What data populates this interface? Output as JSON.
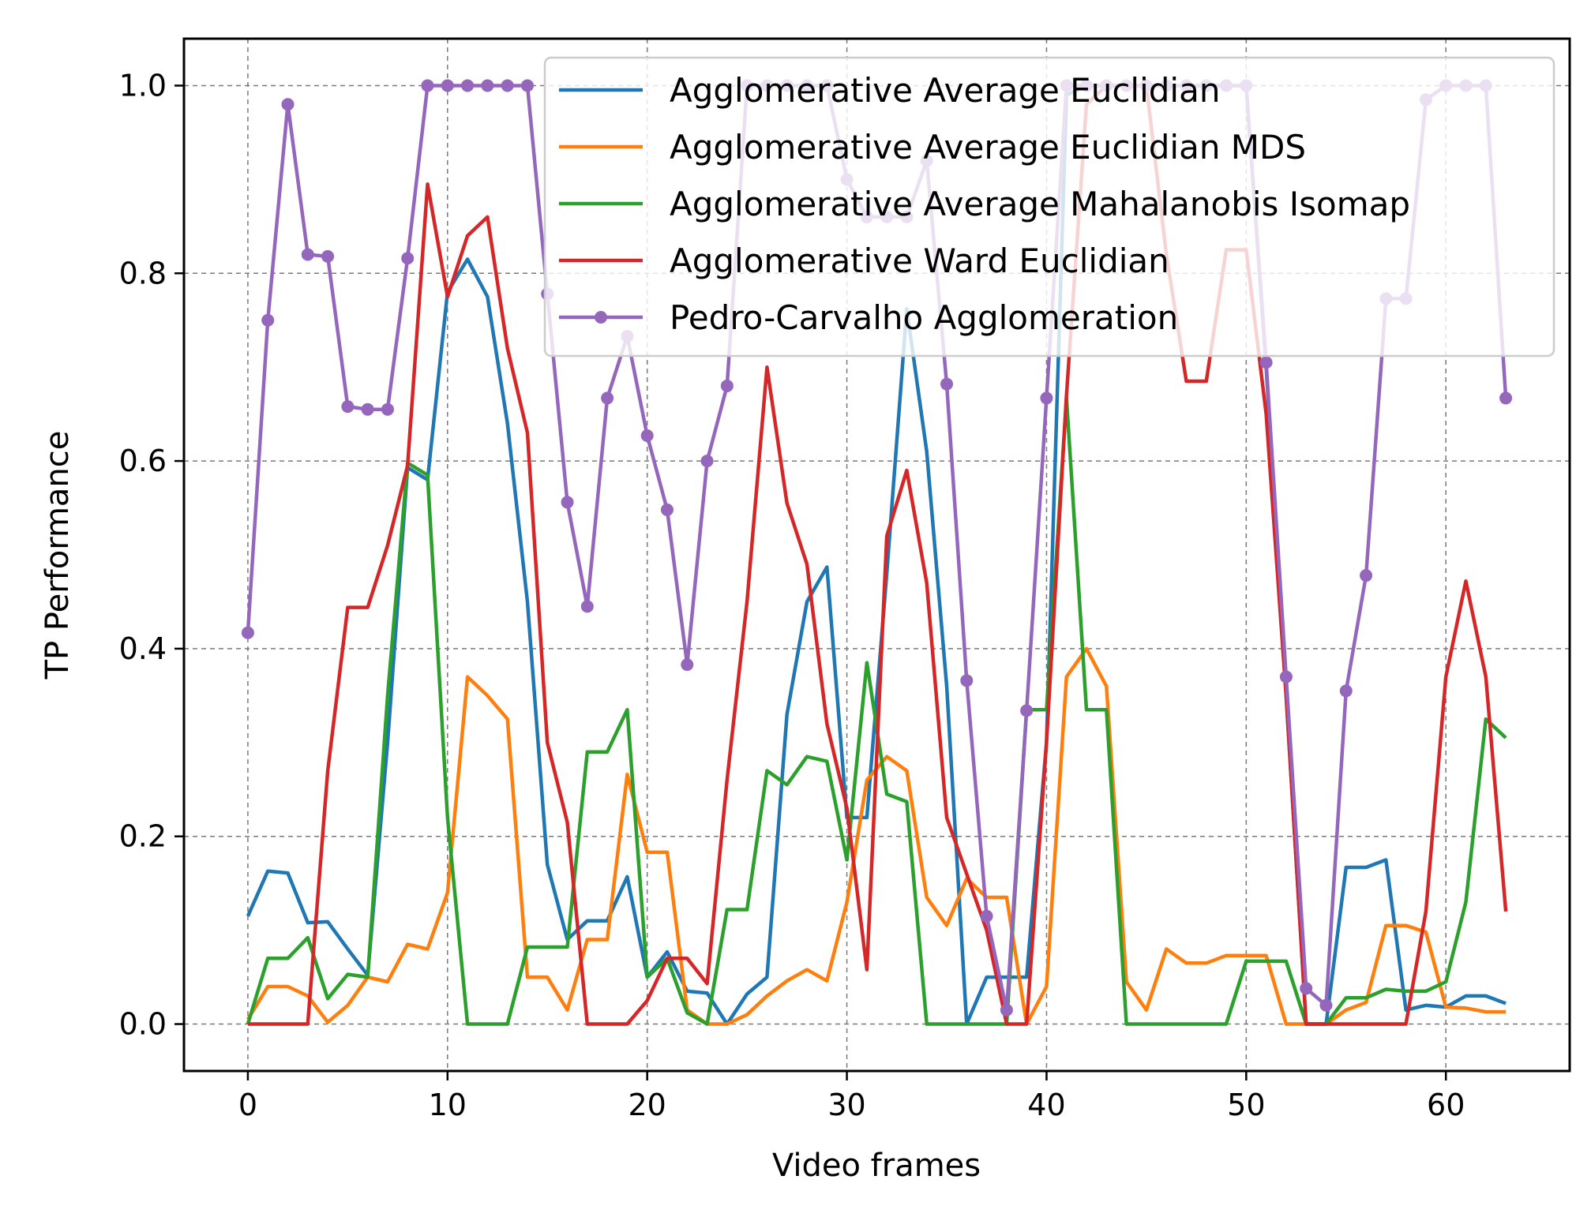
{
  "chart_data": {
    "type": "line",
    "title": "",
    "xlabel": "Video frames",
    "ylabel": "TP Performance",
    "xlim": [
      -3.2,
      66.2
    ],
    "ylim": [
      -0.05,
      1.05
    ],
    "xticks": [
      0,
      10,
      20,
      30,
      40,
      50,
      60
    ],
    "xtick_labels": [
      "0",
      "10",
      "20",
      "30",
      "40",
      "50",
      "60"
    ],
    "yticks": [
      0.0,
      0.2,
      0.4,
      0.6,
      0.8,
      1.0
    ],
    "ytick_labels": [
      "0.0",
      "0.2",
      "0.4",
      "0.6",
      "0.8",
      "1.0"
    ],
    "grid": true,
    "legend_position": "upper-right",
    "x": [
      0,
      1,
      2,
      3,
      4,
      5,
      6,
      7,
      8,
      9,
      10,
      11,
      12,
      13,
      14,
      15,
      16,
      17,
      18,
      19,
      20,
      21,
      22,
      23,
      24,
      25,
      26,
      27,
      28,
      29,
      30,
      31,
      32,
      33,
      34,
      35,
      36,
      37,
      38,
      39,
      40,
      41,
      42,
      43,
      44,
      45,
      46,
      47,
      48,
      49,
      50,
      51,
      52,
      53,
      54,
      55,
      56,
      57,
      58,
      59,
      60,
      61,
      62,
      63
    ],
    "series": [
      {
        "name": "Agglomerative Average Euclidian",
        "color": "#1f77b4",
        "marker": "none",
        "values": [
          0.115,
          0.163,
          0.161,
          0.108,
          0.109,
          0.08,
          0.052,
          0.3,
          0.593,
          0.58,
          0.78,
          0.815,
          0.775,
          0.64,
          0.45,
          0.17,
          0.09,
          0.11,
          0.11,
          0.157,
          0.05,
          0.077,
          0.035,
          0.033,
          0.0,
          0.032,
          0.05,
          0.33,
          0.45,
          0.487,
          0.22,
          0.22,
          0.48,
          0.762,
          0.61,
          0.36,
          0.0,
          0.05,
          0.05,
          0.05,
          0.3,
          0.99,
          1.0,
          1.0,
          1.0,
          1.0,
          1.0,
          1.0,
          1.0,
          1.0,
          1.0,
          0.7,
          0.35,
          0.0,
          0.0,
          0.167,
          0.167,
          0.175,
          0.015,
          0.02,
          0.018,
          0.03,
          0.03,
          0.022
        ]
      },
      {
        "name": "Agglomerative Average Euclidian MDS",
        "color": "#ff7f0e",
        "marker": "none",
        "values": [
          0.005,
          0.04,
          0.04,
          0.03,
          0.002,
          0.02,
          0.05,
          0.045,
          0.085,
          0.08,
          0.14,
          0.37,
          0.35,
          0.325,
          0.05,
          0.05,
          0.015,
          0.09,
          0.09,
          0.266,
          0.183,
          0.183,
          0.015,
          0.0,
          0.0,
          0.01,
          0.03,
          0.046,
          0.058,
          0.046,
          0.13,
          0.26,
          0.285,
          0.27,
          0.135,
          0.105,
          0.155,
          0.135,
          0.135,
          0.0,
          0.04,
          0.37,
          0.4,
          0.36,
          0.045,
          0.015,
          0.08,
          0.065,
          0.065,
          0.073,
          0.073,
          0.073,
          0.0,
          0.0,
          0.0,
          0.015,
          0.023,
          0.105,
          0.105,
          0.098,
          0.018,
          0.017,
          0.013,
          0.013
        ]
      },
      {
        "name": "Agglomerative Average Mahalanobis Isomap",
        "color": "#2ca02c",
        "marker": "none",
        "values": [
          0.0,
          0.07,
          0.07,
          0.092,
          0.027,
          0.053,
          0.05,
          0.35,
          0.598,
          0.585,
          0.22,
          0.0,
          0.0,
          0.0,
          0.082,
          0.082,
          0.082,
          0.29,
          0.29,
          0.335,
          0.05,
          0.07,
          0.012,
          0.0,
          0.122,
          0.122,
          0.27,
          0.255,
          0.285,
          0.28,
          0.175,
          0.385,
          0.245,
          0.237,
          0.0,
          0.0,
          0.0,
          0.0,
          0.0,
          0.335,
          0.335,
          0.667,
          0.335,
          0.335,
          0.0,
          0.0,
          0.0,
          0.0,
          0.0,
          0.0,
          0.067,
          0.067,
          0.067,
          0.0,
          0.0,
          0.028,
          0.028,
          0.037,
          0.035,
          0.035,
          0.045,
          0.13,
          0.325,
          0.305
        ]
      },
      {
        "name": "Agglomerative Ward Euclidian",
        "color": "#d62728",
        "marker": "none",
        "values": [
          0.0,
          0.0,
          0.0,
          0.0,
          0.27,
          0.444,
          0.444,
          0.51,
          0.595,
          0.895,
          0.775,
          0.84,
          0.86,
          0.72,
          0.63,
          0.3,
          0.215,
          0.0,
          0.0,
          0.0,
          0.025,
          0.07,
          0.07,
          0.043,
          0.26,
          0.45,
          0.7,
          0.555,
          0.49,
          0.32,
          0.23,
          0.058,
          0.52,
          0.59,
          0.47,
          0.22,
          0.16,
          0.1,
          0.0,
          0.0,
          0.3,
          0.67,
          0.98,
          1.0,
          1.0,
          1.0,
          0.82,
          0.685,
          0.685,
          0.825,
          0.825,
          0.65,
          0.35,
          0.0,
          0.0,
          0.0,
          0.0,
          0.0,
          0.0,
          0.12,
          0.37,
          0.472,
          0.37,
          0.12
        ]
      },
      {
        "name": "Pedro-Carvalho Agglomeration",
        "color": "#9467bd",
        "marker": "dot",
        "values": [
          0.417,
          0.75,
          0.98,
          0.82,
          0.818,
          0.658,
          0.655,
          0.655,
          0.816,
          1.0,
          1.0,
          1.0,
          1.0,
          1.0,
          1.0,
          0.778,
          0.556,
          0.445,
          0.667,
          0.733,
          0.627,
          0.548,
          0.383,
          0.6,
          0.68,
          1.0,
          1.0,
          1.0,
          1.0,
          1.0,
          0.9,
          0.86,
          0.86,
          0.86,
          0.92,
          0.682,
          0.366,
          0.115,
          0.015,
          0.334,
          0.667,
          1.0,
          1.0,
          1.0,
          1.0,
          1.0,
          1.0,
          1.0,
          1.0,
          1.0,
          1.0,
          0.705,
          0.37,
          0.038,
          0.02,
          0.355,
          0.478,
          0.773,
          0.773,
          0.985,
          1.0,
          1.0,
          1.0,
          0.667
        ]
      }
    ]
  }
}
